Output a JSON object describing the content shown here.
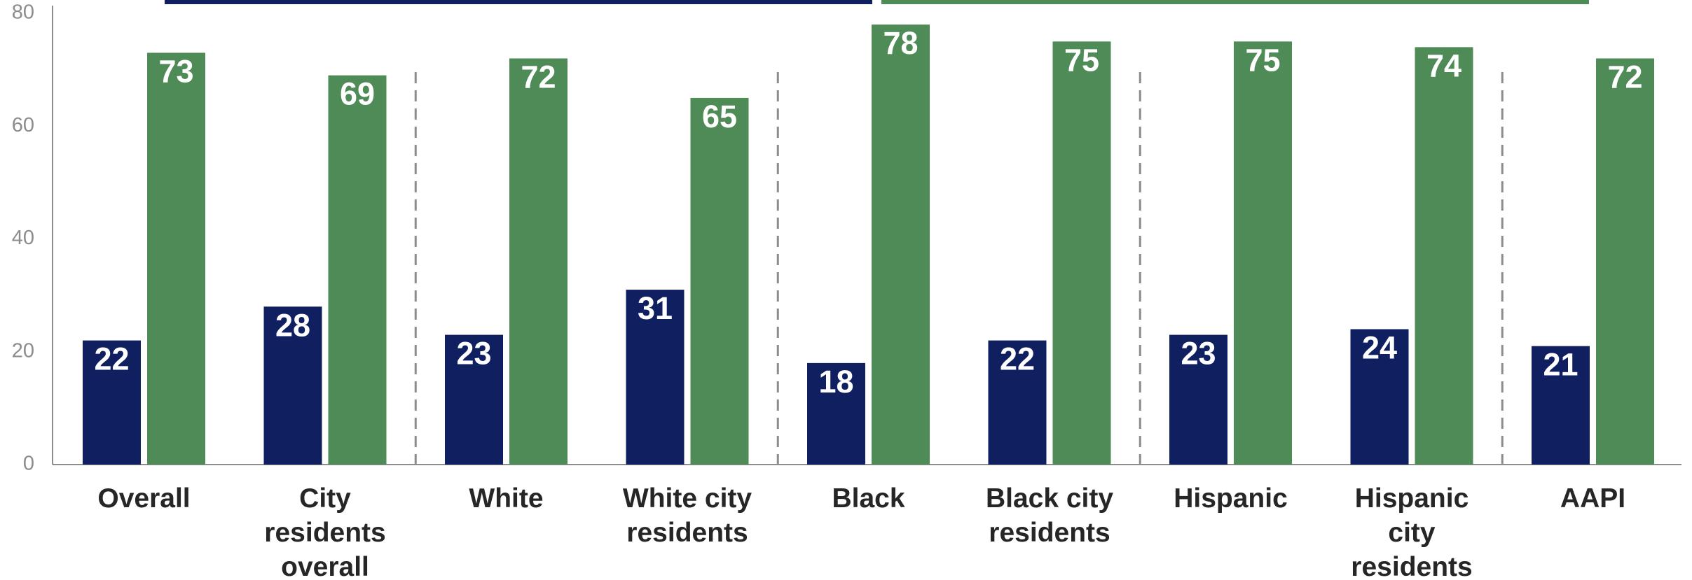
{
  "chart_data": {
    "type": "bar",
    "categories": [
      [
        "Overall"
      ],
      [
        "City",
        "residents",
        "overall"
      ],
      [
        "White"
      ],
      [
        "White city",
        "residents"
      ],
      [
        "Black"
      ],
      [
        "Black city",
        "residents"
      ],
      [
        "Hispanic"
      ],
      [
        "Hispanic",
        "city",
        "residents"
      ],
      [
        "AAPI"
      ]
    ],
    "series": [
      {
        "color": "#0f1f60",
        "values": [
          22,
          28,
          23,
          31,
          18,
          22,
          23,
          24,
          21
        ]
      },
      {
        "color": "#4f8b57",
        "values": [
          73,
          69,
          72,
          65,
          78,
          75,
          75,
          74,
          72
        ]
      }
    ],
    "ylim": [
      0,
      80
    ],
    "yticks": [
      0,
      20,
      40,
      60,
      80
    ],
    "group_dividers_after": [
      1,
      3,
      5,
      7
    ],
    "legend_bar_colors": [
      "#0f1f60",
      "#4f8b57"
    ],
    "grid": false,
    "title": "",
    "xlabel": "",
    "ylabel": ""
  }
}
